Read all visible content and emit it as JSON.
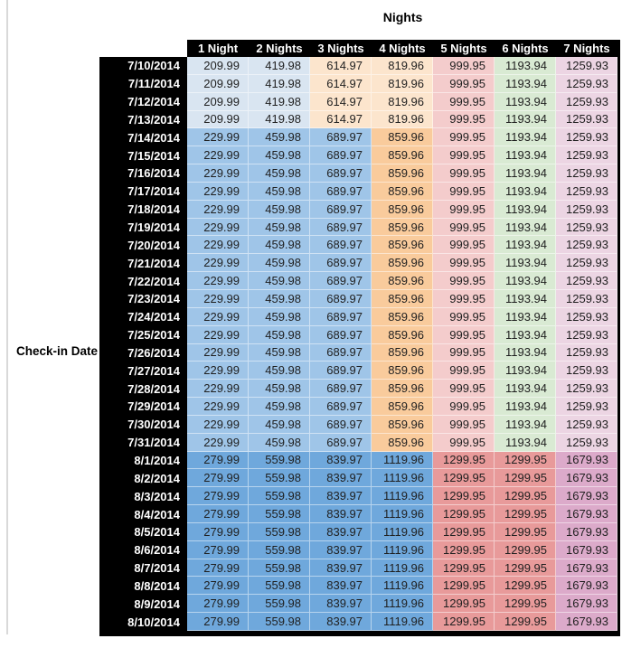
{
  "chart_data": {
    "type": "table",
    "title": "Nights",
    "row_label": "Check-in Date",
    "columns": [
      "1 Night",
      "2 Nights",
      "3 Nights",
      "4 Nights",
      "5 Nights",
      "6 Nights",
      "7 Nights"
    ],
    "rows": [
      {
        "date": "7/10/2014",
        "band": "early_july",
        "values": [
          209.99,
          419.98,
          614.97,
          819.96,
          999.95,
          1193.94,
          1259.93
        ]
      },
      {
        "date": "7/11/2014",
        "band": "early_july",
        "values": [
          209.99,
          419.98,
          614.97,
          819.96,
          999.95,
          1193.94,
          1259.93
        ]
      },
      {
        "date": "7/12/2014",
        "band": "early_july",
        "values": [
          209.99,
          419.98,
          614.97,
          819.96,
          999.95,
          1193.94,
          1259.93
        ]
      },
      {
        "date": "7/13/2014",
        "band": "early_july",
        "values": [
          209.99,
          419.98,
          614.97,
          819.96,
          999.95,
          1193.94,
          1259.93
        ]
      },
      {
        "date": "7/14/2014",
        "band": "mid_july",
        "values": [
          229.99,
          459.98,
          689.97,
          859.96,
          999.95,
          1193.94,
          1259.93
        ]
      },
      {
        "date": "7/15/2014",
        "band": "mid_july",
        "values": [
          229.99,
          459.98,
          689.97,
          859.96,
          999.95,
          1193.94,
          1259.93
        ]
      },
      {
        "date": "7/16/2014",
        "band": "mid_july",
        "values": [
          229.99,
          459.98,
          689.97,
          859.96,
          999.95,
          1193.94,
          1259.93
        ]
      },
      {
        "date": "7/17/2014",
        "band": "mid_july",
        "values": [
          229.99,
          459.98,
          689.97,
          859.96,
          999.95,
          1193.94,
          1259.93
        ]
      },
      {
        "date": "7/18/2014",
        "band": "mid_july",
        "values": [
          229.99,
          459.98,
          689.97,
          859.96,
          999.95,
          1193.94,
          1259.93
        ]
      },
      {
        "date": "7/19/2014",
        "band": "mid_july",
        "values": [
          229.99,
          459.98,
          689.97,
          859.96,
          999.95,
          1193.94,
          1259.93
        ]
      },
      {
        "date": "7/20/2014",
        "band": "mid_july",
        "values": [
          229.99,
          459.98,
          689.97,
          859.96,
          999.95,
          1193.94,
          1259.93
        ]
      },
      {
        "date": "7/21/2014",
        "band": "mid_july",
        "values": [
          229.99,
          459.98,
          689.97,
          859.96,
          999.95,
          1193.94,
          1259.93
        ]
      },
      {
        "date": "7/22/2014",
        "band": "mid_july",
        "values": [
          229.99,
          459.98,
          689.97,
          859.96,
          999.95,
          1193.94,
          1259.93
        ]
      },
      {
        "date": "7/23/2014",
        "band": "mid_july",
        "values": [
          229.99,
          459.98,
          689.97,
          859.96,
          999.95,
          1193.94,
          1259.93
        ]
      },
      {
        "date": "7/24/2014",
        "band": "mid_july",
        "values": [
          229.99,
          459.98,
          689.97,
          859.96,
          999.95,
          1193.94,
          1259.93
        ]
      },
      {
        "date": "7/25/2014",
        "band": "mid_july",
        "values": [
          229.99,
          459.98,
          689.97,
          859.96,
          999.95,
          1193.94,
          1259.93
        ]
      },
      {
        "date": "7/26/2014",
        "band": "mid_july",
        "values": [
          229.99,
          459.98,
          689.97,
          859.96,
          999.95,
          1193.94,
          1259.93
        ]
      },
      {
        "date": "7/27/2014",
        "band": "mid_july",
        "values": [
          229.99,
          459.98,
          689.97,
          859.96,
          999.95,
          1193.94,
          1259.93
        ]
      },
      {
        "date": "7/28/2014",
        "band": "mid_july",
        "values": [
          229.99,
          459.98,
          689.97,
          859.96,
          999.95,
          1193.94,
          1259.93
        ]
      },
      {
        "date": "7/29/2014",
        "band": "mid_july",
        "values": [
          229.99,
          459.98,
          689.97,
          859.96,
          999.95,
          1193.94,
          1259.93
        ]
      },
      {
        "date": "7/30/2014",
        "band": "mid_july",
        "values": [
          229.99,
          459.98,
          689.97,
          859.96,
          999.95,
          1193.94,
          1259.93
        ]
      },
      {
        "date": "7/31/2014",
        "band": "mid_july",
        "values": [
          229.99,
          459.98,
          689.97,
          859.96,
          999.95,
          1193.94,
          1259.93
        ]
      },
      {
        "date": "8/1/2014",
        "band": "august",
        "values": [
          279.99,
          559.98,
          839.97,
          1119.96,
          1299.95,
          1299.95,
          1679.93
        ]
      },
      {
        "date": "8/2/2014",
        "band": "august",
        "values": [
          279.99,
          559.98,
          839.97,
          1119.96,
          1299.95,
          1299.95,
          1679.93
        ]
      },
      {
        "date": "8/3/2014",
        "band": "august",
        "values": [
          279.99,
          559.98,
          839.97,
          1119.96,
          1299.95,
          1299.95,
          1679.93
        ]
      },
      {
        "date": "8/4/2014",
        "band": "august",
        "values": [
          279.99,
          559.98,
          839.97,
          1119.96,
          1299.95,
          1299.95,
          1679.93
        ]
      },
      {
        "date": "8/5/2014",
        "band": "august",
        "values": [
          279.99,
          559.98,
          839.97,
          1119.96,
          1299.95,
          1299.95,
          1679.93
        ]
      },
      {
        "date": "8/6/2014",
        "band": "august",
        "values": [
          279.99,
          559.98,
          839.97,
          1119.96,
          1299.95,
          1299.95,
          1679.93
        ]
      },
      {
        "date": "8/7/2014",
        "band": "august",
        "values": [
          279.99,
          559.98,
          839.97,
          1119.96,
          1299.95,
          1299.95,
          1679.93
        ]
      },
      {
        "date": "8/8/2014",
        "band": "august",
        "values": [
          279.99,
          559.98,
          839.97,
          1119.96,
          1299.95,
          1299.95,
          1679.93
        ]
      },
      {
        "date": "8/9/2014",
        "band": "august",
        "values": [
          279.99,
          559.98,
          839.97,
          1119.96,
          1299.95,
          1299.95,
          1679.93
        ]
      },
      {
        "date": "8/10/2014",
        "band": "august",
        "values": [
          279.99,
          559.98,
          839.97,
          1119.96,
          1299.95,
          1299.95,
          1679.93
        ]
      }
    ],
    "layout": {
      "legend": "none",
      "grid": "white gridlines between colored cells",
      "header_style": "black background, white bold text",
      "value_alignment": "right"
    }
  },
  "style": {
    "header_bg": "#000000",
    "header_text": "#ffffff",
    "cell_text": "#1f1f1f",
    "bands": {
      "early_july": [
        "#d9e5f1",
        "#d9e5f1",
        "#fce5cd",
        "#fce5cd",
        "#f4cccc",
        "#d9ead3",
        "#ecd5e3"
      ],
      "mid_july": [
        "#9fc5e8",
        "#9fc5e8",
        "#9fc5e8",
        "#f9cb9c",
        "#f4cccc",
        "#d9ead3",
        "#ecd5e3"
      ],
      "august": [
        "#6fa8dc",
        "#6fa8dc",
        "#6fa8dc",
        "#6fa8dc",
        "#e89a9a",
        "#e89a9a",
        "#dcaaca"
      ]
    }
  }
}
